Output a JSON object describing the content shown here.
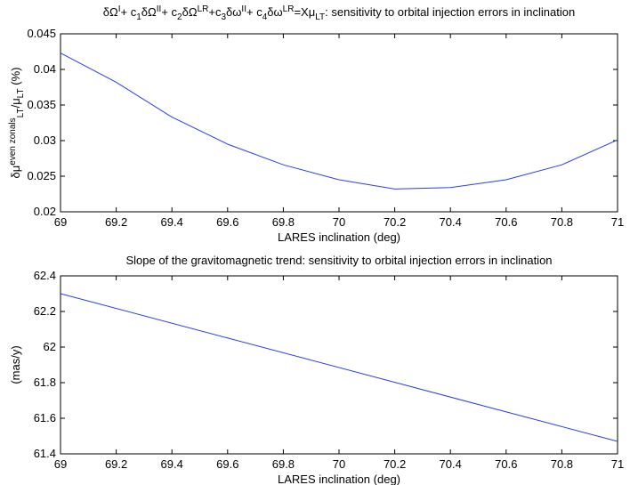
{
  "chart_data": [
    {
      "type": "line",
      "title_parts": [
        {
          "text": "δΩ"
        },
        {
          "text": "I",
          "script": "sup"
        },
        {
          "text": "+ c"
        },
        {
          "text": "1",
          "script": "sub"
        },
        {
          "text": "δΩ"
        },
        {
          "text": "II",
          "script": "sup"
        },
        {
          "text": "+ c"
        },
        {
          "text": "2",
          "script": "sub"
        },
        {
          "text": "δΩ"
        },
        {
          "text": "LR",
          "script": "sup"
        },
        {
          "text": "+c"
        },
        {
          "text": "3",
          "script": "sub"
        },
        {
          "text": "δω"
        },
        {
          "text": "II",
          "script": "sup"
        },
        {
          "text": "+ c"
        },
        {
          "text": "4",
          "script": "sub"
        },
        {
          "text": "δω"
        },
        {
          "text": "LR",
          "script": "sup"
        },
        {
          "text": "=Xμ"
        },
        {
          "text": "LT",
          "script": "sub"
        },
        {
          "text": ": sensitivity to orbital injection errors in inclination"
        }
      ],
      "xlabel": "LARES inclination (deg)",
      "ylabel_parts": [
        {
          "text": "δμ"
        },
        {
          "text": "even zonals",
          "script": "sup"
        },
        {
          "text": "LT",
          "script": "sub"
        },
        {
          "text": "/μ"
        },
        {
          "text": "LT",
          "script": "sub"
        },
        {
          "text": " (%)"
        }
      ],
      "x": [
        69,
        69.2,
        69.4,
        69.6,
        69.8,
        70,
        70.2,
        70.4,
        70.6,
        70.8,
        71
      ],
      "values": [
        0.0423,
        0.0382,
        0.0333,
        0.0295,
        0.0266,
        0.0245,
        0.0232,
        0.0234,
        0.0245,
        0.0266,
        0.0301
      ],
      "color": "#2b3cf0",
      "xlim": [
        69,
        71
      ],
      "ylim": [
        0.02,
        0.045
      ],
      "xticks": [
        69,
        69.2,
        69.4,
        69.6,
        69.8,
        70,
        70.2,
        70.4,
        70.6,
        70.8,
        71
      ],
      "yticks": [
        0.02,
        0.025,
        0.03,
        0.035,
        0.04,
        0.045
      ]
    },
    {
      "type": "line",
      "title_parts": [
        {
          "text": "Slope of the gravitomagnetic trend: sensitivity to orbital injection errors in inclination"
        }
      ],
      "xlabel": "LARES inclination (deg)",
      "ylabel_parts": [
        {
          "text": "(mas/y)"
        }
      ],
      "x": [
        69,
        71
      ],
      "values": [
        62.3,
        61.47
      ],
      "color": "#2b3cf0",
      "xlim": [
        69,
        71
      ],
      "ylim": [
        61.4,
        62.4
      ],
      "xticks": [
        69,
        69.2,
        69.4,
        69.6,
        69.8,
        70,
        70.2,
        70.4,
        70.6,
        70.8,
        71
      ],
      "yticks": [
        61.4,
        61.6,
        61.8,
        62,
        62.2,
        62.4
      ]
    }
  ]
}
